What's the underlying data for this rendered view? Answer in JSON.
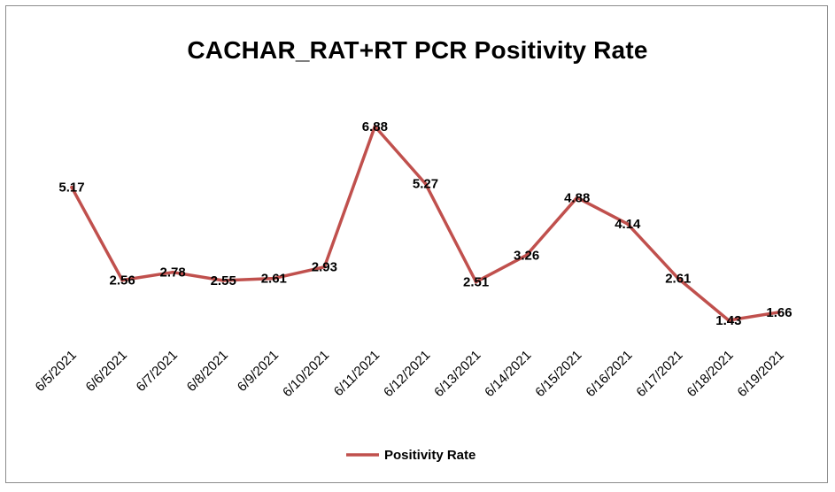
{
  "chart_data": {
    "type": "line",
    "title": "CACHAR_RAT+RT PCR Positivity Rate",
    "categories": [
      "6/5/2021",
      "6/6/2021",
      "6/7/2021",
      "6/8/2021",
      "6/9/2021",
      "6/10/2021",
      "6/11/2021",
      "6/12/2021",
      "6/13/2021",
      "6/14/2021",
      "6/15/2021",
      "6/16/2021",
      "6/17/2021",
      "6/18/2021",
      "6/19/2021"
    ],
    "series": [
      {
        "name": "Positivity Rate",
        "values": [
          5.17,
          2.56,
          2.78,
          2.55,
          2.61,
          2.93,
          6.88,
          5.27,
          2.51,
          3.26,
          4.88,
          4.14,
          2.61,
          1.43,
          1.66
        ],
        "labels": [
          "5.17",
          "2.56",
          "2.78",
          "2.55",
          "2.61",
          "2.93",
          "6.88",
          "5.27",
          "2.51",
          "3.26",
          "4.88",
          "4.14",
          "2.61",
          "1.43",
          "1.66"
        ],
        "color": "#c0504d"
      }
    ],
    "xlabel": "",
    "ylabel": "",
    "grid": false,
    "legend": "bottom"
  }
}
